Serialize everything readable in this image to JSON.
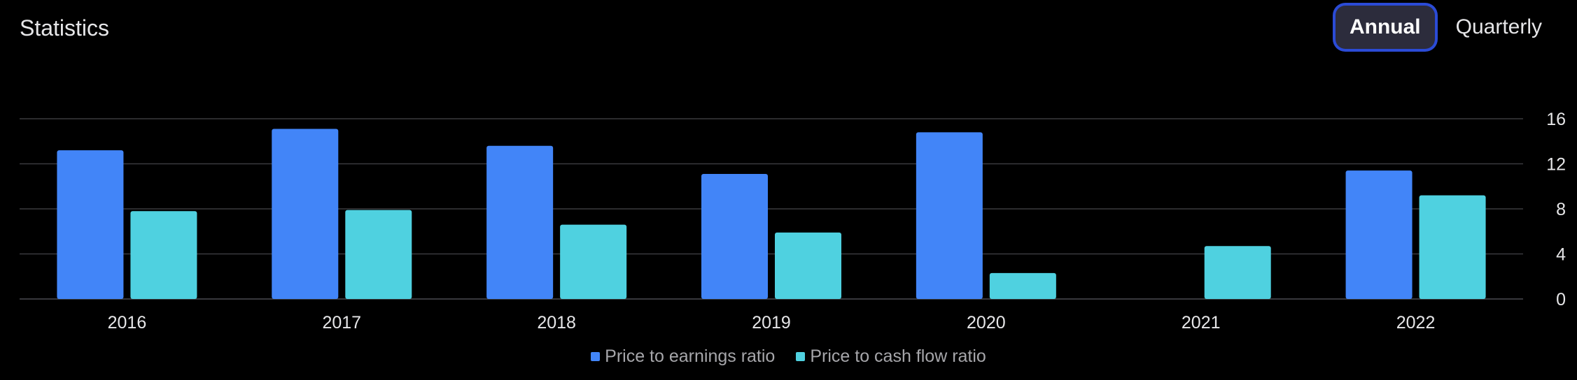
{
  "header": {
    "title": "Statistics"
  },
  "period_toggle": {
    "options": [
      "Annual",
      "Quarterly"
    ],
    "selected": "Annual"
  },
  "colors": {
    "earnings": "#4285f8",
    "cashflow": "#4fd1e0",
    "grid": "#3a3a3e",
    "axis_text": "#e6e6e8"
  },
  "chart_data": {
    "type": "bar",
    "categories": [
      "2016",
      "2017",
      "2018",
      "2019",
      "2020",
      "2021",
      "2022"
    ],
    "series": [
      {
        "name": "Price to earnings ratio",
        "values": [
          13.2,
          15.1,
          13.6,
          11.1,
          14.8,
          null,
          11.4
        ]
      },
      {
        "name": "Price to cash flow ratio",
        "values": [
          7.8,
          7.9,
          6.6,
          5.9,
          2.3,
          4.7,
          9.2
        ]
      }
    ],
    "yticks": [
      0,
      4,
      8,
      12,
      16
    ],
    "ylim": [
      0,
      16
    ],
    "grid": true,
    "legend_position": "bottom"
  }
}
